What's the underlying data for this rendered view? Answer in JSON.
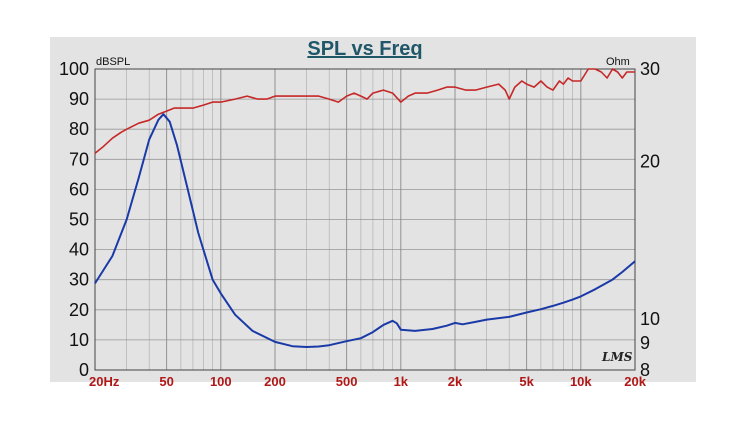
{
  "chart_data": {
    "type": "line",
    "title": "SPL vs Freq",
    "left_axis": {
      "unit": "dBSPL",
      "min": 0,
      "max": 100,
      "ticks": [
        0,
        10,
        20,
        30,
        40,
        50,
        60,
        70,
        80,
        90,
        100
      ],
      "tick_labels": [
        "0",
        "10",
        "20",
        "30",
        "40",
        "50",
        "60",
        "70",
        "80",
        "90",
        "100"
      ]
    },
    "right_axis": {
      "unit": "Ohm",
      "scale": "log",
      "min": 8,
      "max": 30,
      "ticks": [
        8,
        9,
        10,
        20,
        30
      ],
      "tick_labels": [
        "8",
        "9",
        "10",
        "20",
        "30"
      ]
    },
    "x_axis": {
      "scale": "log",
      "min": 20,
      "max": 20000,
      "ticks": [
        20,
        50,
        100,
        200,
        500,
        1000,
        2000,
        5000,
        10000,
        20000
      ],
      "tick_labels": [
        "20Hz",
        "50",
        "100",
        "200",
        "500",
        "1k",
        "2k",
        "5k",
        "10k",
        "20k"
      ]
    },
    "grid": true,
    "logo": "LMS",
    "colors": {
      "spl": "#c62828",
      "impedance": "#1a3aa8",
      "panel": "#e3e3e3",
      "grid": "#8a8a8a",
      "title": "#1f5668"
    },
    "series": [
      {
        "axis": "left",
        "points": [
          [
            20,
            72
          ],
          [
            22,
            74
          ],
          [
            25,
            77
          ],
          [
            28,
            79
          ],
          [
            30,
            80
          ],
          [
            35,
            82
          ],
          [
            40,
            83
          ],
          [
            45,
            85
          ],
          [
            50,
            86
          ],
          [
            55,
            87
          ],
          [
            60,
            87
          ],
          [
            70,
            87
          ],
          [
            80,
            88
          ],
          [
            90,
            89
          ],
          [
            100,
            89
          ],
          [
            120,
            90
          ],
          [
            140,
            91
          ],
          [
            160,
            90
          ],
          [
            180,
            90
          ],
          [
            200,
            91
          ],
          [
            250,
            91
          ],
          [
            300,
            91
          ],
          [
            350,
            91
          ],
          [
            400,
            90
          ],
          [
            450,
            89
          ],
          [
            500,
            91
          ],
          [
            550,
            92
          ],
          [
            600,
            91
          ],
          [
            650,
            90
          ],
          [
            700,
            92
          ],
          [
            800,
            93
          ],
          [
            900,
            92
          ],
          [
            1000,
            89
          ],
          [
            1100,
            91
          ],
          [
            1200,
            92
          ],
          [
            1400,
            92
          ],
          [
            1600,
            93
          ],
          [
            1800,
            94
          ],
          [
            2000,
            94
          ],
          [
            2300,
            93
          ],
          [
            2600,
            93
          ],
          [
            3000,
            94
          ],
          [
            3500,
            95
          ],
          [
            3800,
            93
          ],
          [
            4000,
            90
          ],
          [
            4300,
            94
          ],
          [
            4700,
            96
          ],
          [
            5000,
            95
          ],
          [
            5500,
            94
          ],
          [
            6000,
            96
          ],
          [
            6500,
            94
          ],
          [
            7000,
            93
          ],
          [
            7600,
            96
          ],
          [
            8000,
            95
          ],
          [
            8500,
            97
          ],
          [
            9000,
            96
          ],
          [
            10000,
            96
          ],
          [
            11000,
            100
          ],
          [
            12000,
            100
          ],
          [
            13000,
            99
          ],
          [
            14000,
            97
          ],
          [
            15000,
            100
          ],
          [
            16000,
            99
          ],
          [
            17000,
            97
          ],
          [
            18000,
            99
          ],
          [
            20000,
            99
          ]
        ]
      },
      {
        "axis": "right",
        "points": [
          [
            20,
            11.7
          ],
          [
            25,
            13.2
          ],
          [
            30,
            15.5
          ],
          [
            35,
            18.6
          ],
          [
            40,
            22.0
          ],
          [
            45,
            24.0
          ],
          [
            48,
            24.6
          ],
          [
            52,
            23.8
          ],
          [
            57,
            21.5
          ],
          [
            65,
            17.9
          ],
          [
            75,
            14.6
          ],
          [
            90,
            11.9
          ],
          [
            100,
            11.2
          ],
          [
            120,
            10.2
          ],
          [
            150,
            9.5
          ],
          [
            200,
            9.05
          ],
          [
            250,
            8.88
          ],
          [
            300,
            8.85
          ],
          [
            350,
            8.87
          ],
          [
            400,
            8.92
          ],
          [
            500,
            9.08
          ],
          [
            600,
            9.2
          ],
          [
            700,
            9.45
          ],
          [
            800,
            9.75
          ],
          [
            900,
            9.93
          ],
          [
            950,
            9.82
          ],
          [
            1000,
            9.55
          ],
          [
            1200,
            9.5
          ],
          [
            1500,
            9.58
          ],
          [
            1800,
            9.72
          ],
          [
            2000,
            9.84
          ],
          [
            2200,
            9.78
          ],
          [
            2600,
            9.88
          ],
          [
            3000,
            9.98
          ],
          [
            4000,
            10.1
          ],
          [
            5000,
            10.3
          ],
          [
            6000,
            10.45
          ],
          [
            7000,
            10.6
          ],
          [
            8000,
            10.75
          ],
          [
            9000,
            10.9
          ],
          [
            10000,
            11.05
          ],
          [
            12000,
            11.4
          ],
          [
            15000,
            11.9
          ],
          [
            17000,
            12.3
          ],
          [
            20000,
            12.9
          ]
        ]
      }
    ]
  }
}
